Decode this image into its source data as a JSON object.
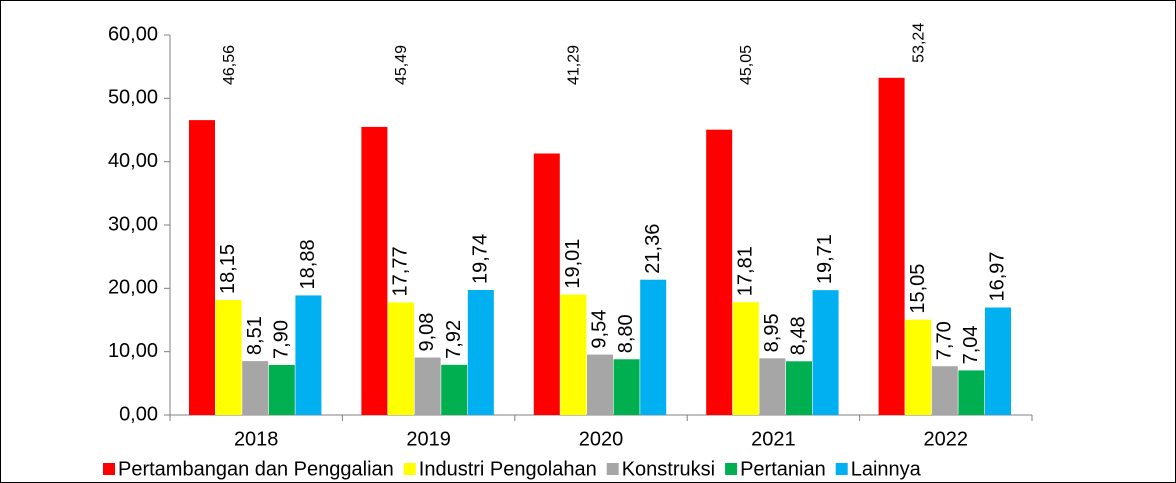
{
  "chart_data": {
    "type": "bar",
    "categories": [
      "2018",
      "2019",
      "2020",
      "2021",
      "2022"
    ],
    "series": [
      {
        "name": "Pertambangan dan Penggalian",
        "color": "#ff0000",
        "label_color": "#c00000",
        "values": [
          46.56,
          45.49,
          41.29,
          45.05,
          53.24
        ],
        "value_labels": [
          "46,56",
          "45,49",
          "41,29",
          "45,05",
          "53,24"
        ]
      },
      {
        "name": "Industri Pengolahan",
        "color": "#ffff00",
        "label_color": "#bf9000",
        "values": [
          18.15,
          17.77,
          19.01,
          17.81,
          15.05
        ],
        "value_labels": [
          "18,15",
          "17,77",
          "19,01",
          "17,81",
          "15,05"
        ]
      },
      {
        "name": "Konstruksi",
        "color": "#a6a6a6",
        "label_color": "#000000",
        "values": [
          8.51,
          9.08,
          9.54,
          8.95,
          7.7
        ],
        "value_labels": [
          "8,51",
          "9,08",
          "9,54",
          "8,95",
          "7,70"
        ]
      },
      {
        "name": "Pertanian",
        "color": "#00b050",
        "label_color": "#4f6228",
        "values": [
          7.9,
          7.92,
          8.8,
          8.48,
          7.04
        ],
        "value_labels": [
          "7,90",
          "7,92",
          "8,80",
          "8,48",
          "7,04"
        ]
      },
      {
        "name": "Lainnya",
        "color": "#00b0f0",
        "label_color": "#1f3864",
        "values": [
          18.88,
          19.74,
          21.36,
          19.71,
          16.97
        ],
        "value_labels": [
          "18,88",
          "19,74",
          "21,36",
          "19,71",
          "16,97"
        ]
      }
    ],
    "ylim": [
      0,
      60
    ],
    "yticks": [
      {
        "value": 0,
        "label": "0,00"
      },
      {
        "value": 10,
        "label": "10,00"
      },
      {
        "value": 20,
        "label": "20,00"
      },
      {
        "value": 30,
        "label": "30,00"
      },
      {
        "value": 40,
        "label": "40,00"
      },
      {
        "value": 50,
        "label": "50,00"
      },
      {
        "value": 60,
        "label": "60,00"
      }
    ],
    "grid": false,
    "legend": "bottom"
  }
}
